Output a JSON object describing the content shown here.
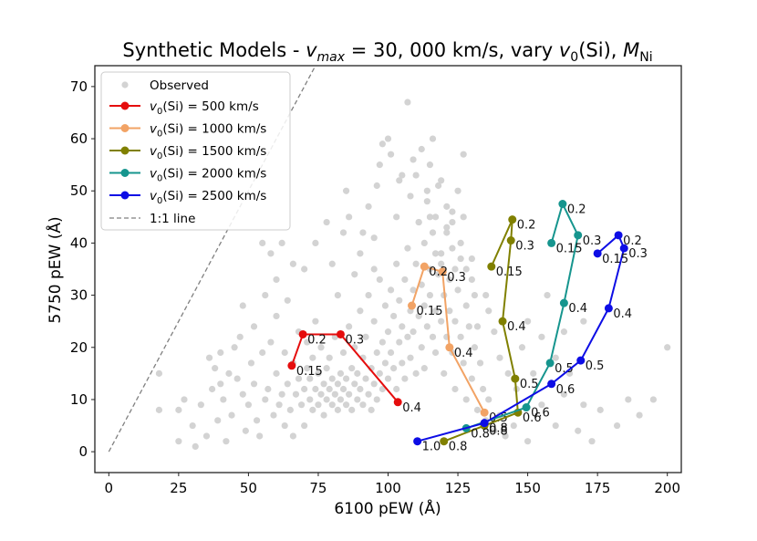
{
  "chart_data": {
    "type": "scatter",
    "title": "Synthetic Models - v_max = 30, 000 km/s, vary v_0(Si), M_Ni",
    "title_parts": {
      "prefix": "Synthetic Models - ",
      "vmax_v": "v",
      "vmax_sub": "max",
      "vmax_rest": " = 30, 000 km/s, vary ",
      "v0_v": "v",
      "v0_sub": "0",
      "v0_rest": "(Si), ",
      "mni_m": "M",
      "mni_sub": "Ni"
    },
    "xlabel": "6100 pEW (Å)",
    "ylabel": "5750 pEW (Å)",
    "xlim": [
      -5,
      205
    ],
    "ylim": [
      -4,
      74
    ],
    "xticks": [
      0,
      25,
      50,
      75,
      100,
      125,
      150,
      175,
      200
    ],
    "yticks": [
      0,
      10,
      20,
      30,
      40,
      50,
      60,
      70
    ],
    "grid": false,
    "legend_position": "top-left",
    "observed": {
      "name": "Observed",
      "color": "#d3d3d3",
      "points": [
        [
          18,
          8
        ],
        [
          18,
          15
        ],
        [
          25,
          8
        ],
        [
          25,
          2
        ],
        [
          27,
          10
        ],
        [
          30,
          5
        ],
        [
          31,
          1
        ],
        [
          33,
          9
        ],
        [
          35,
          3
        ],
        [
          36,
          18
        ],
        [
          37,
          12
        ],
        [
          39,
          6
        ],
        [
          40,
          19
        ],
        [
          41,
          10
        ],
        [
          42,
          2
        ],
        [
          43,
          15
        ],
        [
          44,
          7
        ],
        [
          46,
          14
        ],
        [
          47,
          22
        ],
        [
          48,
          11
        ],
        [
          49,
          4
        ],
        [
          50,
          9
        ],
        [
          51,
          17
        ],
        [
          52,
          13
        ],
        [
          53,
          6
        ],
        [
          54,
          3
        ],
        [
          55,
          19
        ],
        [
          56,
          10
        ],
        [
          57,
          12
        ],
        [
          58,
          21
        ],
        [
          59,
          7
        ],
        [
          60,
          15
        ],
        [
          61,
          9
        ],
        [
          62,
          11
        ],
        [
          63,
          5
        ],
        [
          63,
          19
        ],
        [
          64,
          13
        ],
        [
          65,
          8
        ],
        [
          66,
          17
        ],
        [
          66,
          3
        ],
        [
          67,
          11
        ],
        [
          68,
          14
        ],
        [
          68,
          23
        ],
        [
          69,
          9
        ],
        [
          70,
          12
        ],
        [
          70,
          5
        ],
        [
          71,
          16
        ],
        [
          71,
          21
        ],
        [
          72,
          10
        ],
        [
          72,
          14
        ],
        [
          73,
          8
        ],
        [
          73,
          18
        ],
        [
          74,
          12
        ],
        [
          74,
          25
        ],
        [
          75,
          9
        ],
        [
          75,
          15
        ],
        [
          76,
          11
        ],
        [
          76,
          20
        ],
        [
          77,
          13
        ],
        [
          77,
          7
        ],
        [
          78,
          16
        ],
        [
          78,
          10
        ],
        [
          79,
          12
        ],
        [
          79,
          18
        ],
        [
          80,
          9
        ],
        [
          80,
          14
        ],
        [
          81,
          11
        ],
        [
          81,
          22
        ],
        [
          82,
          13
        ],
        [
          82,
          8
        ],
        [
          83,
          15
        ],
        [
          83,
          10
        ],
        [
          84,
          12
        ],
        [
          84,
          19
        ],
        [
          85,
          9
        ],
        [
          85,
          14
        ],
        [
          86,
          11
        ],
        [
          86,
          24
        ],
        [
          87,
          16
        ],
        [
          87,
          8
        ],
        [
          88,
          13
        ],
        [
          88,
          20
        ],
        [
          89,
          10
        ],
        [
          89,
          15
        ],
        [
          90,
          12
        ],
        [
          90,
          27
        ],
        [
          91,
          18
        ],
        [
          91,
          9
        ],
        [
          92,
          14
        ],
        [
          92,
          22
        ],
        [
          93,
          11
        ],
        [
          93,
          30
        ],
        [
          94,
          16
        ],
        [
          94,
          8
        ],
        [
          95,
          13
        ],
        [
          95,
          25
        ],
        [
          96,
          19
        ],
        [
          96,
          10
        ],
        [
          97,
          15
        ],
        [
          97,
          33
        ],
        [
          98,
          21
        ],
        [
          98,
          12
        ],
        [
          99,
          17
        ],
        [
          99,
          28
        ],
        [
          100,
          14
        ],
        [
          100,
          23
        ],
        [
          101,
          19
        ],
        [
          101,
          31
        ],
        [
          102,
          16
        ],
        [
          102,
          26
        ],
        [
          103,
          12
        ],
        [
          103,
          36
        ],
        [
          104,
          21
        ],
        [
          104,
          29
        ],
        [
          105,
          17
        ],
        [
          105,
          24
        ],
        [
          106,
          33
        ],
        [
          106,
          14
        ],
        [
          107,
          22
        ],
        [
          107,
          39
        ],
        [
          108,
          27
        ],
        [
          108,
          18
        ],
        [
          109,
          31
        ],
        [
          109,
          23
        ],
        [
          110,
          15
        ],
        [
          110,
          36
        ],
        [
          111,
          26
        ],
        [
          111,
          44
        ],
        [
          112,
          20
        ],
        [
          112,
          32
        ],
        [
          113,
          28
        ],
        [
          113,
          16
        ],
        [
          114,
          24
        ],
        [
          114,
          48
        ],
        [
          115,
          35
        ],
        [
          115,
          30
        ],
        [
          116,
          22
        ],
        [
          116,
          42
        ],
        [
          117,
          27
        ],
        [
          117,
          19
        ],
        [
          118,
          34
        ],
        [
          118,
          51
        ],
        [
          119,
          25
        ],
        [
          119,
          38
        ],
        [
          120,
          30
        ],
        [
          120,
          15
        ],
        [
          121,
          22
        ],
        [
          121,
          43
        ],
        [
          122,
          27
        ],
        [
          122,
          33
        ],
        [
          123,
          19
        ],
        [
          123,
          46
        ],
        [
          124,
          25
        ],
        [
          124,
          12
        ],
        [
          125,
          31
        ],
        [
          126,
          22
        ],
        [
          126,
          37
        ],
        [
          127,
          17
        ],
        [
          128,
          28
        ],
        [
          128,
          10
        ],
        [
          129,
          24
        ],
        [
          130,
          33
        ],
        [
          130,
          14
        ],
        [
          131,
          20
        ],
        [
          132,
          8
        ],
        [
          133,
          17
        ],
        [
          134,
          12
        ],
        [
          135,
          6
        ],
        [
          136,
          10
        ],
        [
          138,
          4
        ],
        [
          140,
          7
        ],
        [
          142,
          3
        ],
        [
          145,
          5
        ],
        [
          150,
          2
        ],
        [
          155,
          9
        ],
        [
          160,
          5
        ],
        [
          163,
          11
        ],
        [
          168,
          4
        ],
        [
          170,
          9
        ],
        [
          173,
          2
        ],
        [
          176,
          8
        ],
        [
          182,
          5
        ],
        [
          186,
          10
        ],
        [
          190,
          7
        ],
        [
          195,
          10
        ],
        [
          200,
          20
        ],
        [
          55,
          40
        ],
        [
          60,
          33
        ],
        [
          66,
          36
        ],
        [
          70,
          35
        ],
        [
          74,
          40
        ],
        [
          84,
          42
        ],
        [
          86,
          45
        ],
        [
          90,
          38
        ],
        [
          93,
          47
        ],
        [
          95,
          41
        ],
        [
          96,
          51
        ],
        [
          97,
          55
        ],
        [
          98,
          59
        ],
        [
          100,
          60
        ],
        [
          101,
          57
        ],
        [
          103,
          45
        ],
        [
          104,
          52
        ],
        [
          105,
          53
        ],
        [
          108,
          49
        ],
        [
          109,
          56
        ],
        [
          110,
          53
        ],
        [
          112,
          58
        ],
        [
          114,
          50
        ],
        [
          115,
          55
        ],
        [
          116,
          60
        ],
        [
          117,
          45
        ],
        [
          119,
          52
        ],
        [
          121,
          47
        ],
        [
          123,
          44
        ],
        [
          125,
          50
        ],
        [
          127,
          57
        ],
        [
          107,
          67
        ],
        [
          111,
          44
        ],
        [
          113,
          40
        ],
        [
          115,
          45
        ],
        [
          117,
          38
        ],
        [
          119,
          36
        ],
        [
          121,
          42
        ],
        [
          123,
          39
        ],
        [
          124,
          35
        ],
        [
          126,
          40
        ],
        [
          127,
          45
        ],
        [
          128,
          35
        ],
        [
          130,
          37
        ],
        [
          131,
          30
        ],
        [
          132,
          24
        ],
        [
          135,
          30
        ],
        [
          136,
          27
        ],
        [
          138,
          23
        ],
        [
          140,
          18
        ],
        [
          143,
          15
        ],
        [
          146,
          12
        ],
        [
          148,
          20
        ],
        [
          150,
          25
        ],
        [
          152,
          15
        ],
        [
          155,
          22
        ],
        [
          157,
          30
        ],
        [
          160,
          18
        ],
        [
          163,
          23
        ],
        [
          165,
          15
        ],
        [
          170,
          25
        ],
        [
          78,
          44
        ],
        [
          80,
          36
        ],
        [
          82,
          30
        ],
        [
          85,
          50
        ],
        [
          88,
          34
        ],
        [
          91,
          42
        ],
        [
          95,
          35
        ],
        [
          60,
          26
        ],
        [
          64,
          29
        ],
        [
          56,
          30
        ],
        [
          52,
          24
        ],
        [
          48,
          28
        ],
        [
          45,
          20
        ],
        [
          40,
          13
        ],
        [
          38,
          16
        ],
        [
          62,
          40
        ],
        [
          58,
          38
        ]
      ]
    },
    "series": [
      {
        "name": "v_0(Si) = 500 km/s",
        "legend_v": "v",
        "legend_sub": "0",
        "legend_rest": "(Si) = 500 km/s",
        "color": "#e50d0d",
        "points": [
          [
            103.5,
            9.5
          ],
          [
            83,
            22.5
          ],
          [
            69.5,
            22.5
          ],
          [
            65.5,
            16.5
          ]
        ],
        "labels": [
          "0.4",
          "0.3",
          "0.2",
          "0.15"
        ]
      },
      {
        "name": "v_0(Si) = 1000 km/s",
        "legend_v": "v",
        "legend_sub": "0",
        "legend_rest": "(Si) = 1000 km/s",
        "color": "#f2a365",
        "points": [
          [
            134.5,
            7.5
          ],
          [
            122,
            20
          ],
          [
            119.5,
            34.5
          ],
          [
            113,
            35.5
          ],
          [
            108.5,
            28
          ]
        ],
        "labels": [
          "0.5",
          "0.4",
          "0.3",
          "0.2",
          "0.15"
        ]
      },
      {
        "name": "v_0(Si) = 1500 km/s",
        "legend_v": "v",
        "legend_sub": "0",
        "legend_rest": "(Si) = 1500 km/s",
        "color": "#808000",
        "points": [
          [
            120,
            2
          ],
          [
            134.5,
            5
          ],
          [
            146.5,
            7.5
          ],
          [
            145.5,
            14
          ],
          [
            141,
            25
          ],
          [
            144,
            40.5
          ],
          [
            144.5,
            44.5
          ],
          [
            137,
            35.5
          ]
        ],
        "labels": [
          "0.8",
          "0.8",
          "0.6",
          "0.5",
          "0.4",
          "0.3",
          "0.2",
          "0.15"
        ]
      },
      {
        "name": "v_0(Si) = 2000 km/s",
        "legend_v": "v",
        "legend_sub": "0",
        "legend_rest": "(Si) = 2000 km/s",
        "color": "#16958e",
        "points": [
          [
            128,
            4.5
          ],
          [
            149.5,
            8.5
          ],
          [
            158,
            17
          ],
          [
            163,
            28.5
          ],
          [
            168,
            41.5
          ],
          [
            162.5,
            47.5
          ],
          [
            158.5,
            40
          ]
        ],
        "labels": [
          "0.8",
          "0.6",
          "0.5",
          "0.4",
          "0.3",
          "0.2",
          "0.15"
        ]
      },
      {
        "name": "v_0(Si) = 2500 km/s",
        "legend_v": "v",
        "legend_sub": "0",
        "legend_rest": "(Si) = 2500 km/s",
        "color": "#0d0de5",
        "points": [
          [
            110.5,
            2
          ],
          [
            134.5,
            5.5
          ],
          [
            158.5,
            13
          ],
          [
            169,
            17.5
          ],
          [
            179,
            27.5
          ],
          [
            184.5,
            39
          ],
          [
            182.5,
            41.5
          ],
          [
            175,
            38
          ]
        ],
        "labels": [
          "1.0",
          "0.8",
          "0.6",
          "0.5",
          "0.4",
          "0.3",
          "0.2",
          "0.15"
        ]
      }
    ],
    "reference_line": {
      "name": "1:1 line",
      "color": "#808080",
      "points": [
        [
          0,
          0
        ],
        [
          74,
          74
        ]
      ]
    }
  }
}
